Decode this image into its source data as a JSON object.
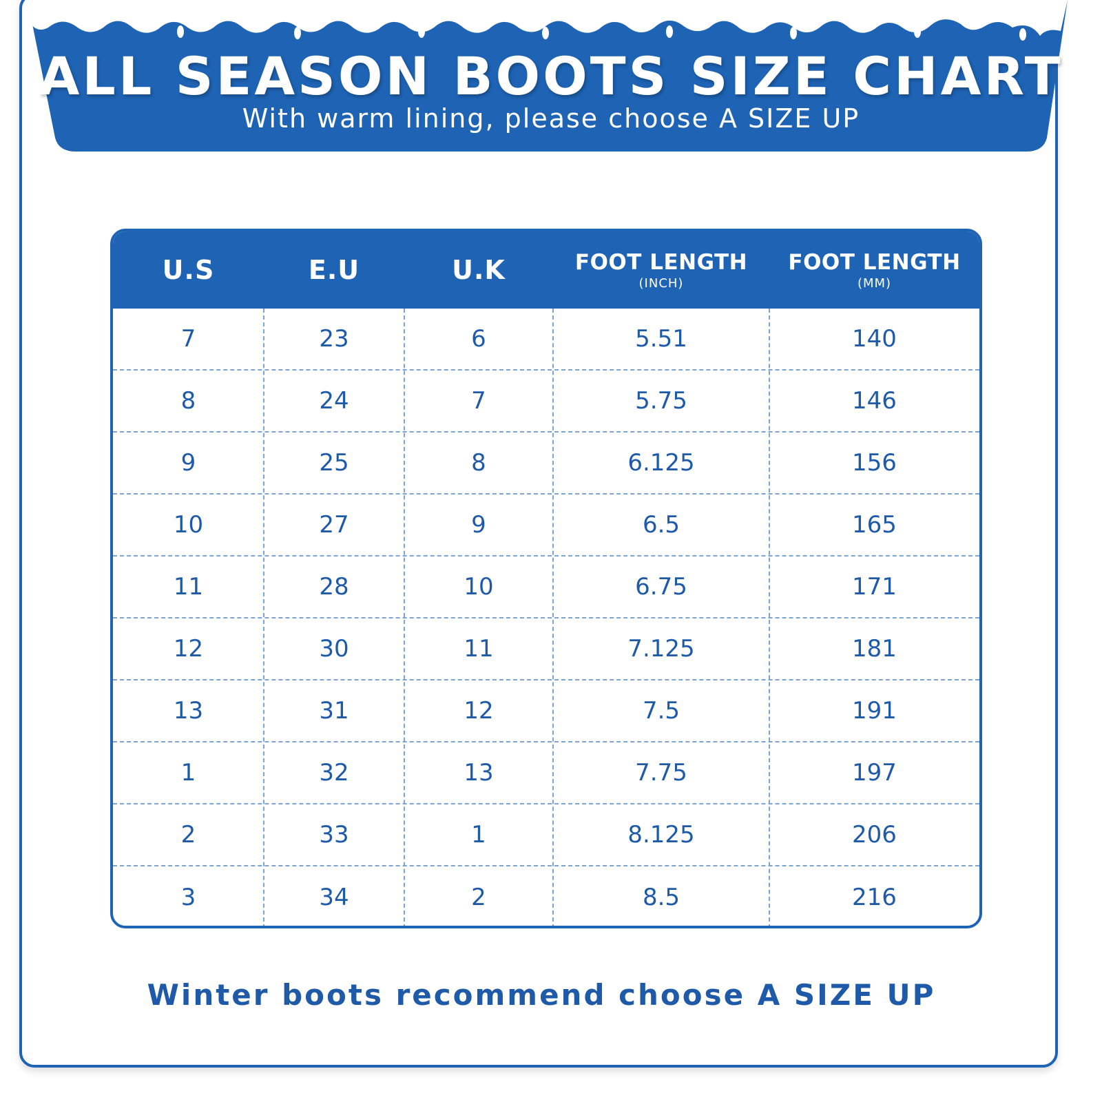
{
  "header": {
    "title": "ALL SEASON BOOTS SIZE CHART",
    "subtitle": "With warm lining, please choose A SIZE UP"
  },
  "table": {
    "columns": [
      {
        "label": "U.S",
        "unit": ""
      },
      {
        "label": "E.U",
        "unit": ""
      },
      {
        "label": "U.K",
        "unit": ""
      },
      {
        "label": "FOOT LENGTH",
        "unit": "(INCH)"
      },
      {
        "label": "FOOT LENGTH",
        "unit": "(MM)"
      }
    ],
    "rows": [
      [
        "7",
        "23",
        "6",
        "5.51",
        "140"
      ],
      [
        "8",
        "24",
        "7",
        "5.75",
        "146"
      ],
      [
        "9",
        "25",
        "8",
        "6.125",
        "156"
      ],
      [
        "10",
        "27",
        "9",
        "6.5",
        "165"
      ],
      [
        "11",
        "28",
        "10",
        "6.75",
        "171"
      ],
      [
        "12",
        "30",
        "11",
        "7.125",
        "181"
      ],
      [
        "13",
        "31",
        "12",
        "7.5",
        "191"
      ],
      [
        "1",
        "32",
        "13",
        "7.75",
        "197"
      ],
      [
        "2",
        "33",
        "1",
        "8.125",
        "206"
      ],
      [
        "3",
        "34",
        "2",
        "8.5",
        "216"
      ]
    ]
  },
  "footer": {
    "note": "Winter boots recommend choose A SIZE UP"
  },
  "colors": {
    "primary_blue": "#1e63b4",
    "text_blue": "#1e5aa8",
    "snow_white": "#ffffff"
  }
}
